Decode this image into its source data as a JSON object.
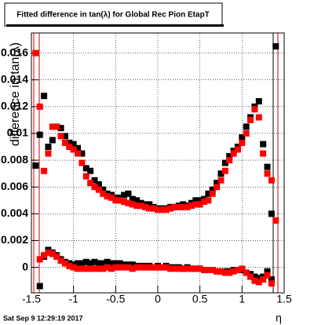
{
  "chart_data": {
    "type": "scatter",
    "title": "Fitted difference in tan(λ) for Global Rec Pion EtapT",
    "x_label": "η",
    "y_label": "difference in tan(λ)",
    "timestamp": "Sat Sep  9 12:29:19 2017",
    "xlim": [
      -1.5,
      1.5
    ],
    "ylim": [
      -0.0019,
      0.0175
    ],
    "xticks": [
      -1.5,
      -1,
      -0.5,
      0,
      0.5,
      1,
      1.5
    ],
    "yticks": [
      0,
      0.002,
      0.004,
      0.006,
      0.008,
      0.01,
      0.012,
      0.014,
      0.016
    ],
    "grid": true,
    "x": [
      -1.45,
      -1.4,
      -1.35,
      -1.3,
      -1.25,
      -1.2,
      -1.15,
      -1.1,
      -1.05,
      -1.0,
      -0.95,
      -0.9,
      -0.85,
      -0.8,
      -0.75,
      -0.7,
      -0.65,
      -0.6,
      -0.55,
      -0.5,
      -0.45,
      -0.4,
      -0.35,
      -0.3,
      -0.25,
      -0.2,
      -0.15,
      -0.1,
      -0.05,
      0,
      0.05,
      0.1,
      0.15,
      0.2,
      0.25,
      0.3,
      0.35,
      0.4,
      0.45,
      0.5,
      0.55,
      0.6,
      0.65,
      0.7,
      0.75,
      0.8,
      0.85,
      0.9,
      0.95,
      1.0,
      1.05,
      1.1,
      1.15,
      1.2,
      1.25,
      1.3,
      1.35,
      1.4
    ],
    "series": [
      {
        "color": "#000000",
        "values": [
          0.0076,
          0.0099,
          0.0128,
          0.009,
          0.0095,
          0.0105,
          0.0104,
          0.0098,
          0.0093,
          0.0092,
          0.0089,
          0.0085,
          0.0074,
          0.0072,
          0.0065,
          0.0062,
          0.0058,
          0.0055,
          0.0054,
          0.0052,
          0.0052,
          0.0054,
          0.0055,
          0.0051,
          0.005,
          0.0048,
          0.0047,
          0.0047,
          0.0045,
          0.0044,
          0.0044,
          0.0044,
          0.0045,
          0.0045,
          0.0046,
          0.0047,
          0.0046,
          0.0048,
          0.005,
          0.005,
          0.0051,
          0.0055,
          0.0058,
          0.0063,
          0.007,
          0.0078,
          0.0083,
          0.0087,
          0.009,
          0.0097,
          0.0105,
          0.0112,
          0.012,
          0.0124,
          0.0092,
          0.0075,
          0.004,
          0.0165
        ]
      },
      {
        "color": "#ff0000",
        "values": [
          0.016,
          0.012,
          0.0072,
          0.0085,
          0.0105,
          0.0105,
          0.0098,
          0.0093,
          0.009,
          0.0088,
          0.0085,
          0.0078,
          0.0068,
          0.0063,
          0.006,
          0.0058,
          0.0055,
          0.0053,
          0.0052,
          0.005,
          0.005,
          0.0049,
          0.0048,
          0.0047,
          0.0046,
          0.0046,
          0.0045,
          0.0044,
          0.0044,
          0.0043,
          0.0043,
          0.0043,
          0.0044,
          0.0045,
          0.0045,
          0.0045,
          0.0045,
          0.0046,
          0.0047,
          0.0047,
          0.0049,
          0.005,
          0.0055,
          0.006,
          0.0065,
          0.0072,
          0.008,
          0.0085,
          0.0088,
          0.0093,
          0.01,
          0.011,
          0.0118,
          0.0112,
          0.0085,
          0.007,
          0.0065,
          0.0035
        ]
      },
      {
        "color": "#000000",
        "values": [
          null,
          -0.0014,
          0.0008,
          0.0013,
          0.0011,
          0.0009,
          0.0006,
          0.0004,
          0.0003,
          0.0002,
          0.0003,
          0.0003,
          0.0004,
          0.0003,
          0.0004,
          0.0003,
          0.0003,
          0.0004,
          0.0003,
          0.0003,
          0.0003,
          0.0002,
          0.0002,
          0.0002,
          0.0001,
          0.0001,
          0.0001,
          0.0001,
          0.0,
          0.0001,
          0.0,
          0.0001,
          0.0,
          0.0,
          0.0,
          -0.0001,
          0.0,
          -0.0001,
          -0.0001,
          -0.0001,
          -0.0002,
          -0.0002,
          -0.0002,
          -0.0003,
          -0.0003,
          -0.0003,
          -0.0003,
          -0.0002,
          -0.0002,
          -0.0002,
          -0.0004,
          -0.0005,
          -0.0007,
          -0.0008,
          -0.0007,
          -0.0003,
          -0.0009,
          null
        ]
      },
      {
        "color": "#ff0000",
        "values": [
          null,
          0.0006,
          0.0009,
          0.0011,
          0.001,
          0.0008,
          0.0005,
          0.0003,
          0.0001,
          0.0,
          -0.0001,
          -0.0001,
          -0.0001,
          -0.0001,
          -0.0001,
          -0.0001,
          -0.0001,
          0.0,
          -0.0001,
          0.0,
          0.0,
          0.0,
          0.0,
          -0.0001,
          0.0,
          0.0,
          0.0,
          0.0,
          0.0,
          0.0,
          0.0,
          0.0,
          -0.0001,
          -0.0001,
          -0.0001,
          -0.0001,
          -0.0001,
          -0.0001,
          -0.0001,
          -0.0001,
          -0.0002,
          -0.0002,
          -0.0002,
          -0.0003,
          -0.0003,
          -0.0004,
          -0.0004,
          -0.0003,
          -0.0002,
          -0.0001,
          -0.0004,
          -0.0007,
          -0.001,
          -0.0011,
          -0.0009,
          -0.0006,
          -0.0012,
          null
        ]
      }
    ]
  }
}
